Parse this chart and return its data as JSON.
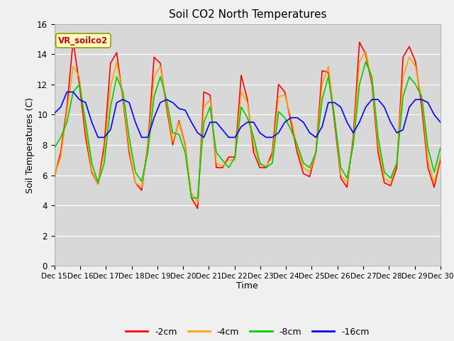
{
  "title": "Soil CO2 North Temperatures",
  "xlabel": "Time",
  "ylabel": "Soil Temperatures (C)",
  "label_box": "VR_soilco2",
  "ylim": [
    0,
    16
  ],
  "yticks": [
    0,
    2,
    4,
    6,
    8,
    10,
    12,
    14,
    16
  ],
  "xtick_labels": [
    "Dec 15",
    "Dec 16",
    "Dec 17",
    "Dec 18",
    "Dec 19",
    "Dec 20",
    "Dec 21",
    "Dec 22",
    "Dec 23",
    "Dec 24",
    "Dec 25",
    "Dec 26",
    "Dec 27",
    "Dec 28",
    "Dec 29",
    "Dec 30"
  ],
  "series_colors": [
    "#ff0000",
    "#ffa500",
    "#00cc00",
    "#0000ff"
  ],
  "series_labels": [
    "-2cm",
    "-4cm",
    "-8cm",
    "-16cm"
  ],
  "fig_bg_color": "#e8e8e8",
  "plot_bg_color": "#d3d3d3",
  "series": {
    "s2cm": [
      5.9,
      7.5,
      10.5,
      14.9,
      12.0,
      8.5,
      6.2,
      5.4,
      8.0,
      13.4,
      14.1,
      11.0,
      7.5,
      5.5,
      5.0,
      8.0,
      13.8,
      13.4,
      10.5,
      8.0,
      9.6,
      8.0,
      4.5,
      3.8,
      11.5,
      11.3,
      6.5,
      6.5,
      7.2,
      7.2,
      12.6,
      11.0,
      7.5,
      6.5,
      6.5,
      7.5,
      12.0,
      11.5,
      9.5,
      7.5,
      6.1,
      5.9,
      7.5,
      12.9,
      12.8,
      9.5,
      5.8,
      5.2,
      8.5,
      14.8,
      14.0,
      12.0,
      7.5,
      5.5,
      5.3,
      6.5,
      13.8,
      14.5,
      13.5,
      10.5,
      6.5,
      5.2,
      7.0
    ],
    "s4cm": [
      6.0,
      7.2,
      10.2,
      13.2,
      12.5,
      9.0,
      6.3,
      5.4,
      7.5,
      11.8,
      13.5,
      11.2,
      7.8,
      5.5,
      5.2,
      7.8,
      12.5,
      13.2,
      10.8,
      8.2,
      9.5,
      7.9,
      4.8,
      4.2,
      10.5,
      11.0,
      6.8,
      6.6,
      7.0,
      7.0,
      11.5,
      10.8,
      8.0,
      6.7,
      6.6,
      7.2,
      11.2,
      11.3,
      9.8,
      7.8,
      6.5,
      6.2,
      7.5,
      12.0,
      13.2,
      9.8,
      6.0,
      5.5,
      8.2,
      13.5,
      14.2,
      12.2,
      8.0,
      5.8,
      5.5,
      6.8,
      12.5,
      13.8,
      13.2,
      11.0,
      7.0,
      5.5,
      7.2
    ],
    "s8cm": [
      7.8,
      8.5,
      9.5,
      11.5,
      12.0,
      9.5,
      6.8,
      5.5,
      6.8,
      10.5,
      12.5,
      11.5,
      8.5,
      6.2,
      5.6,
      7.5,
      11.2,
      12.5,
      11.0,
      8.8,
      8.7,
      7.5,
      4.5,
      4.5,
      9.5,
      10.5,
      7.5,
      7.0,
      6.5,
      7.2,
      10.5,
      9.8,
      8.5,
      6.8,
      6.5,
      6.8,
      10.2,
      9.8,
      9.0,
      8.0,
      6.8,
      6.5,
      7.5,
      11.0,
      12.5,
      9.8,
      6.5,
      5.8,
      8.0,
      12.0,
      13.5,
      12.5,
      8.5,
      6.2,
      5.8,
      6.8,
      11.2,
      12.5,
      12.0,
      11.2,
      7.8,
      6.2,
      7.8
    ],
    "s16cm": [
      10.1,
      10.5,
      11.5,
      11.5,
      11.0,
      10.8,
      9.5,
      8.5,
      8.5,
      9.0,
      10.8,
      11.0,
      10.8,
      9.5,
      8.5,
      8.5,
      9.8,
      10.8,
      11.0,
      10.8,
      10.4,
      10.3,
      9.5,
      8.8,
      8.5,
      9.5,
      9.5,
      9.0,
      8.5,
      8.5,
      9.2,
      9.5,
      9.5,
      8.8,
      8.5,
      8.5,
      8.8,
      9.5,
      9.8,
      9.8,
      9.5,
      8.8,
      8.5,
      9.2,
      10.8,
      10.8,
      10.5,
      9.5,
      8.8,
      9.5,
      10.5,
      11.0,
      11.0,
      10.5,
      9.5,
      8.8,
      9.0,
      10.5,
      11.0,
      11.0,
      10.8,
      10.0,
      9.5
    ]
  }
}
